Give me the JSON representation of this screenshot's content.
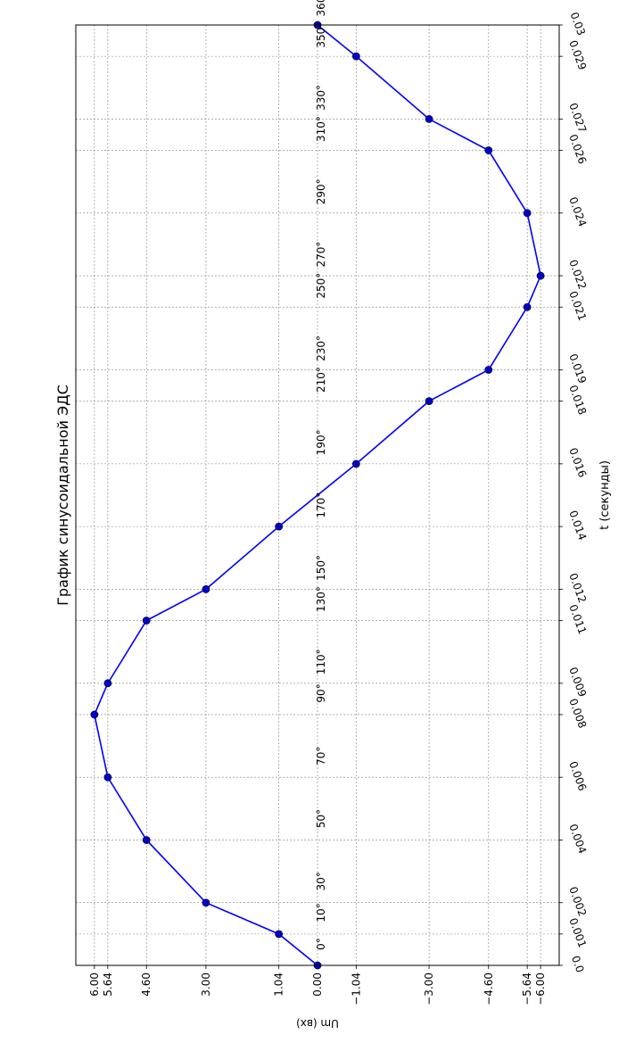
{
  "chart_data": {
    "type": "line",
    "title": "График синусоидальной ЭДС",
    "xlabel": "t (секунды)",
    "ylabel": "Um (вх)",
    "xlim": [
      0,
      0.03
    ],
    "ylim": [
      -6.5,
      6.5
    ],
    "grid": true,
    "x_ticks": [
      0.0,
      0.001,
      0.002,
      0.004,
      0.006,
      0.008,
      0.009,
      0.011,
      0.012,
      0.014,
      0.016,
      0.018,
      0.019,
      0.021,
      0.022,
      0.024,
      0.026,
      0.027,
      0.029,
      0.03
    ],
    "x_tick_labels": [
      "0.0",
      "0.001",
      "0.002",
      "0.004",
      "0.006",
      "0.008",
      "0.009",
      "0.011",
      "0.012",
      "0.014",
      "0.016",
      "0.018",
      "0.019",
      "0.021",
      "0.022",
      "0.024",
      "0.026",
      "0.027",
      "0.029",
      "0.03"
    ],
    "angle_labels": [
      "0°",
      "10°",
      "30°",
      "50°",
      "70°",
      "90°",
      "110°",
      "130°",
      "150°",
      "170°",
      "190°",
      "210°",
      "230°",
      "250°",
      "270°",
      "290°",
      "310°",
      "330°",
      "350°",
      "360°"
    ],
    "y_ticks": [
      6.0,
      5.64,
      4.6,
      3.0,
      1.04,
      0.0,
      -1.04,
      -3.0,
      -4.6,
      -5.64,
      -6.0
    ],
    "y_tick_labels": [
      "6.00",
      "5.64",
      "4.60",
      "3.00",
      "1.04",
      "0.00",
      "−1.04",
      "−3.00",
      "−4.60",
      "−5.64",
      "−6.00"
    ],
    "series": [
      {
        "color": "#0000ff",
        "marker_color": "#0000cc",
        "x": [
          0.0,
          0.001,
          0.002,
          0.004,
          0.006,
          0.008,
          0.009,
          0.011,
          0.012,
          0.014,
          0.016,
          0.018,
          0.019,
          0.021,
          0.022,
          0.024,
          0.026,
          0.027,
          0.029,
          0.03
        ],
        "y": [
          0.0,
          1.04,
          3.0,
          4.6,
          5.64,
          6.0,
          5.64,
          4.6,
          3.0,
          1.04,
          -1.04,
          -3.0,
          -4.6,
          -5.64,
          -6.0,
          -5.64,
          -4.6,
          -3.0,
          -1.04,
          0.0
        ]
      }
    ]
  }
}
